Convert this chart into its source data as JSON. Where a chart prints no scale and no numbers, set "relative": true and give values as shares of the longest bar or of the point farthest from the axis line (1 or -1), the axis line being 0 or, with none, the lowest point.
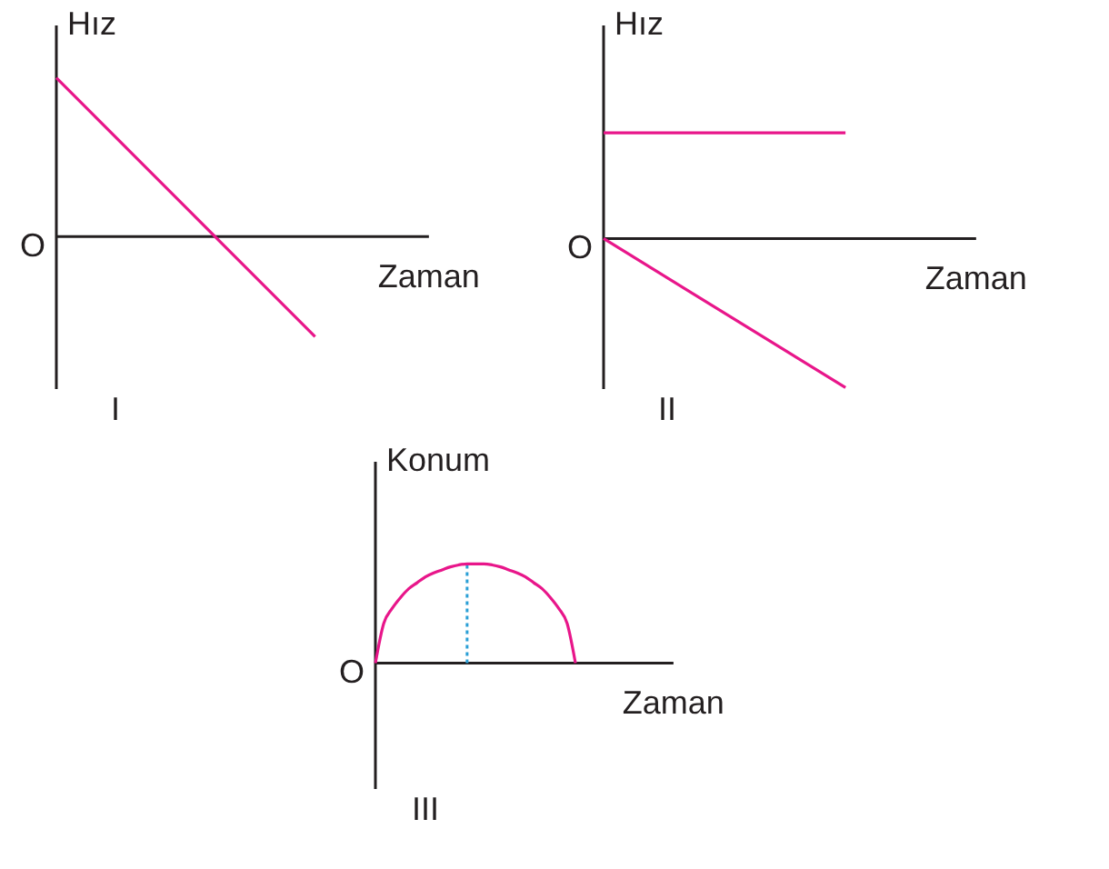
{
  "chart_data": [
    {
      "type": "line",
      "title": "I",
      "xlabel": "Zaman",
      "ylabel": "Hız",
      "relative": true,
      "categories": [
        null,
        null
      ],
      "series": [
        {
          "color": "#e8168a",
          "values": [
            1,
            -0.63
          ]
        }
      ],
      "annotations": [
        "O"
      ]
    },
    {
      "type": "line",
      "title": "II",
      "xlabel": "Zaman",
      "ylabel": "Hız",
      "relative": true,
      "categories": [
        null,
        null
      ],
      "series": [
        {
          "color": "#e8168a",
          "values": [
            0.71,
            0.71
          ]
        },
        {
          "color": "#e8168a",
          "values": [
            0,
            -1
          ]
        }
      ],
      "annotations": [
        "O"
      ]
    },
    {
      "type": "line",
      "title": "III",
      "xlabel": "Zaman",
      "ylabel": "Konum",
      "relative": true,
      "categories": [
        null,
        null,
        null,
        null,
        null,
        null,
        null,
        null,
        null,
        null,
        null,
        null,
        null,
        null,
        null,
        null,
        null,
        null,
        null,
        null,
        null,
        null,
        null,
        null,
        null
      ],
      "series": [
        {
          "color": "#e8168a",
          "values": [
            0,
            0.4,
            0.55,
            0.66,
            0.75,
            0.81,
            0.87,
            0.91,
            0.94,
            0.97,
            0.99,
            1,
            1,
            1,
            0.99,
            0.97,
            0.94,
            0.91,
            0.87,
            0.81,
            0.75,
            0.66,
            0.55,
            0.4,
            0
          ]
        }
      ],
      "annotations": [
        "O"
      ]
    }
  ]
}
